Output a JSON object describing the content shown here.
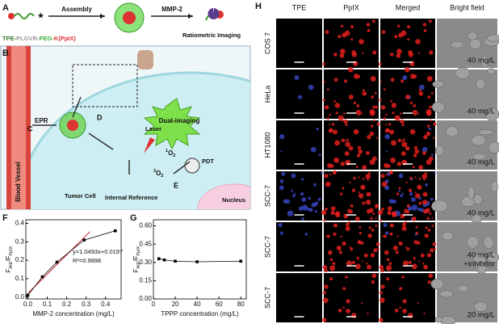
{
  "schematic": {
    "label_a": "A",
    "assembly": "Assembly",
    "mmp2": "MMP-2",
    "ratiometric": "Ratiometric Imaging",
    "sequence": [
      "TPE-",
      "PLGVR-",
      "PEG-",
      "K(PpIX)"
    ],
    "label_b": "B",
    "blood_vessel": "Blood Vessel",
    "label_c": "C",
    "epr": "EPR",
    "label_d": "D",
    "laser": "Laser",
    "dual": "Dual-imaging",
    "singlet_o2": [
      "1",
      "O",
      "2"
    ],
    "triplet_o2": [
      "3",
      "O",
      "2"
    ],
    "pdt": "PDT",
    "tumor_cell": "Tumor Cell",
    "internal": "Internal Reference",
    "label_e": "E",
    "nucleus": "Nucleus"
  },
  "microscopy": {
    "label": "H",
    "columns": [
      "TPE",
      "PpIX",
      "Merged",
      "Bright field"
    ],
    "rows": [
      {
        "cell": "COS 7",
        "dose": "40 mg/L"
      },
      {
        "cell": "HeLa",
        "dose": "40 mg/L"
      },
      {
        "cell": "HT1080",
        "dose": "40 mg/L"
      },
      {
        "cell": "SCC-7",
        "dose": "40 mg/L"
      },
      {
        "cell": "SCC-7",
        "dose": [
          "40 mg/L",
          "+inhibitor"
        ]
      },
      {
        "cell": "SCC-7",
        "dose": "20 mg/L"
      }
    ]
  },
  "chart_data": [
    {
      "type": "line",
      "panel": "F",
      "xlabel": "MMP-2 concentration (mg/L)",
      "ylabel": [
        "F",
        "AIE",
        "/F",
        "PpIX"
      ],
      "x": [
        0,
        0.075,
        0.15,
        0.29,
        0.45
      ],
      "values": [
        0.01,
        0.11,
        0.19,
        0.31,
        0.36
      ],
      "color": "#000000",
      "xlim": [
        -0.01,
        0.48
      ],
      "ylim": [
        -0.01,
        0.42
      ],
      "xticks": [
        {
          "value": 0,
          "label": "0.0"
        },
        {
          "value": 0.1,
          "label": "0.1"
        },
        {
          "value": 0.2,
          "label": "0.2"
        },
        {
          "value": 0.3,
          "label": "0.3"
        },
        {
          "value": 0.4,
          "label": "0.4"
        }
      ],
      "yticks": [
        {
          "value": 0,
          "label": "0.0"
        },
        {
          "value": 0.1,
          "label": "0.1"
        },
        {
          "value": 0.2,
          "label": "0.2"
        },
        {
          "value": 0.3,
          "label": "0.3"
        },
        {
          "value": 0.4,
          "label": "0.4"
        }
      ],
      "fit": {
        "x": [
          0,
          0.32
        ],
        "values": [
          0.0197,
          0.3555
        ],
        "color": "#d62020"
      },
      "annotations": [
        "y=1.0493x+0.0197",
        "R²=0.9898"
      ]
    },
    {
      "type": "line",
      "panel": "G",
      "xlabel": "TPPP concentration (mg/L)",
      "ylabel": [
        "F",
        "AIE",
        "/F",
        "PpIX"
      ],
      "x": [
        5,
        10,
        20,
        40,
        80
      ],
      "values": [
        0.33,
        0.32,
        0.31,
        0.305,
        0.31
      ],
      "color": "#000000",
      "xlim": [
        0,
        85
      ],
      "ylim": [
        0,
        0.65
      ],
      "xticks": [
        0,
        20,
        40,
        60,
        80
      ],
      "yticks": [
        {
          "value": 0,
          "label": "0.00"
        },
        {
          "value": 0.15,
          "label": "0.15"
        },
        {
          "value": 0.3,
          "label": "0.30"
        },
        {
          "value": 0.45,
          "label": "0.45"
        },
        {
          "value": 0.6,
          "label": "0.60"
        }
      ]
    }
  ]
}
